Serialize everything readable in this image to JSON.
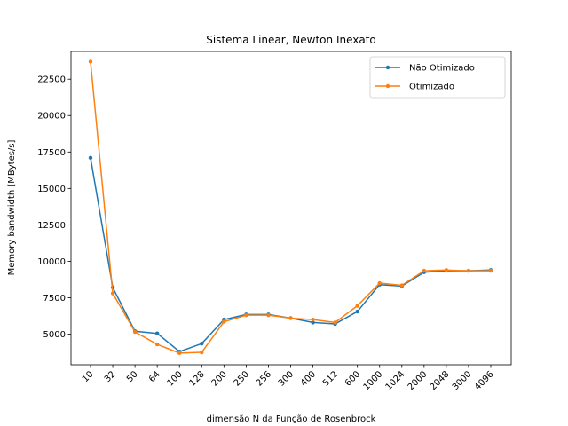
{
  "chart_data": {
    "type": "line",
    "title": "Sistema Linear, Newton Inexato",
    "xlabel": "dimensão N da Função de Rosenbrock",
    "ylabel": "Memory bandwidth [MBytes/s]",
    "categories": [
      "10",
      "32",
      "50",
      "64",
      "100",
      "128",
      "200",
      "250",
      "256",
      "300",
      "400",
      "512",
      "600",
      "1000",
      "1024",
      "2000",
      "2048",
      "3000",
      "4096"
    ],
    "yticks": [
      5000,
      7500,
      10000,
      12500,
      15000,
      17500,
      20000,
      22500
    ],
    "ylim": [
      2900,
      24400
    ],
    "grid": false,
    "legend_position": "top-right",
    "series": [
      {
        "name": "Não Otimizado",
        "color": "#1f77b4",
        "values": [
          17100,
          8200,
          5200,
          5050,
          3800,
          4350,
          6000,
          6350,
          6350,
          6100,
          5800,
          5700,
          6550,
          8400,
          8300,
          9250,
          9350,
          9350,
          9400
        ]
      },
      {
        "name": "Otimizado",
        "color": "#ff7f0e",
        "values": [
          23700,
          7800,
          5150,
          4300,
          3700,
          3750,
          5850,
          6300,
          6300,
          6100,
          6000,
          5800,
          6950,
          8500,
          8350,
          9350,
          9400,
          9350,
          9350
        ]
      }
    ]
  }
}
